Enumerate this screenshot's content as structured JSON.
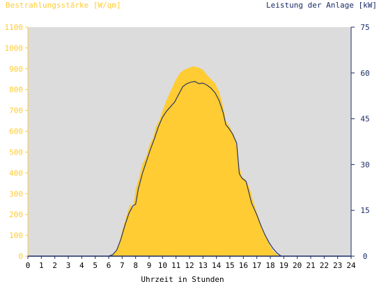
{
  "chart_data": {
    "type": "area",
    "y_left_label": "Bestrahlungsstärke [W/qm]",
    "y_right_label": "Leistung der Anlage [kW]",
    "xlabel": "Uhrzeit in Stunden",
    "xlim": [
      0,
      24
    ],
    "ylim_left": [
      0,
      1100
    ],
    "ylim_right": [
      0,
      75
    ],
    "x_ticks": [
      0,
      1,
      2,
      3,
      4,
      5,
      6,
      7,
      8,
      9,
      10,
      11,
      12,
      13,
      14,
      15,
      16,
      17,
      18,
      19,
      20,
      21,
      22,
      23,
      24
    ],
    "y_left_ticks": [
      0,
      100,
      200,
      300,
      400,
      500,
      600,
      700,
      800,
      900,
      1000,
      1100
    ],
    "y_right_ticks": [
      0,
      15,
      30,
      45,
      60,
      75
    ],
    "colors": {
      "irradiance": "#ffcc33",
      "left_axis_text": "#ffcc33",
      "power": "#1a2a66",
      "right_axis_text": "#1a2a66",
      "plot_background": "#dcdcdc",
      "axis_text": "#000000"
    },
    "series": [
      {
        "name": "Bestrahlungsstärke [W/qm]",
        "axis": "left",
        "points": [
          [
            0,
            0
          ],
          [
            5.9,
            0
          ],
          [
            6.2,
            5
          ],
          [
            6.5,
            20
          ],
          [
            6.8,
            70
          ],
          [
            7.0,
            120
          ],
          [
            7.3,
            190
          ],
          [
            7.6,
            250
          ],
          [
            7.8,
            230
          ],
          [
            8.0,
            320
          ],
          [
            8.3,
            390
          ],
          [
            8.5,
            440
          ],
          [
            8.8,
            480
          ],
          [
            9.0,
            530
          ],
          [
            9.3,
            570
          ],
          [
            9.5,
            620
          ],
          [
            9.8,
            660
          ],
          [
            10.0,
            700
          ],
          [
            10.3,
            750
          ],
          [
            10.5,
            780
          ],
          [
            10.8,
            820
          ],
          [
            11.0,
            850
          ],
          [
            11.3,
            880
          ],
          [
            11.6,
            895
          ],
          [
            12.0,
            905
          ],
          [
            12.3,
            912
          ],
          [
            12.7,
            905
          ],
          [
            13.0,
            895
          ],
          [
            13.3,
            870
          ],
          [
            13.6,
            850
          ],
          [
            13.9,
            830
          ],
          [
            14.2,
            790
          ],
          [
            14.5,
            720
          ],
          [
            14.7,
            650
          ],
          [
            15.0,
            620
          ],
          [
            15.3,
            580
          ],
          [
            15.5,
            530
          ],
          [
            15.7,
            430
          ],
          [
            15.9,
            380
          ],
          [
            16.1,
            370
          ],
          [
            16.3,
            350
          ],
          [
            16.5,
            320
          ],
          [
            16.7,
            270
          ],
          [
            17.0,
            210
          ],
          [
            17.3,
            150
          ],
          [
            17.6,
            100
          ],
          [
            17.9,
            60
          ],
          [
            18.2,
            25
          ],
          [
            18.5,
            8
          ],
          [
            18.8,
            0
          ],
          [
            24,
            0
          ]
        ]
      },
      {
        "name": "Leistung der Anlage [kW]",
        "axis": "right",
        "points": [
          [
            0,
            0
          ],
          [
            6.0,
            0
          ],
          [
            6.3,
            0.5
          ],
          [
            6.6,
            2
          ],
          [
            6.9,
            5.5
          ],
          [
            7.2,
            10
          ],
          [
            7.5,
            14
          ],
          [
            7.8,
            16.5
          ],
          [
            8.0,
            17
          ],
          [
            8.2,
            22
          ],
          [
            8.5,
            27
          ],
          [
            8.8,
            31
          ],
          [
            9.1,
            35
          ],
          [
            9.4,
            38.5
          ],
          [
            9.7,
            42.5
          ],
          [
            10.0,
            45.5
          ],
          [
            10.3,
            47.5
          ],
          [
            10.6,
            49
          ],
          [
            10.9,
            50.5
          ],
          [
            11.2,
            53
          ],
          [
            11.5,
            55.5
          ],
          [
            11.8,
            56.5
          ],
          [
            12.1,
            57
          ],
          [
            12.4,
            57.2
          ],
          [
            12.7,
            56.5
          ],
          [
            13.0,
            56.7
          ],
          [
            13.3,
            56
          ],
          [
            13.6,
            55
          ],
          [
            13.9,
            53.5
          ],
          [
            14.2,
            51
          ],
          [
            14.5,
            47
          ],
          [
            14.7,
            43
          ],
          [
            14.9,
            42
          ],
          [
            15.2,
            40
          ],
          [
            15.5,
            37
          ],
          [
            15.7,
            27
          ],
          [
            15.9,
            25.5
          ],
          [
            16.2,
            24.5
          ],
          [
            16.4,
            21
          ],
          [
            16.6,
            17.5
          ],
          [
            17.0,
            13.5
          ],
          [
            17.3,
            10
          ],
          [
            17.6,
            7
          ],
          [
            17.9,
            4.5
          ],
          [
            18.2,
            2.5
          ],
          [
            18.5,
            1
          ],
          [
            18.8,
            0
          ],
          [
            24,
            0
          ]
        ]
      }
    ]
  }
}
